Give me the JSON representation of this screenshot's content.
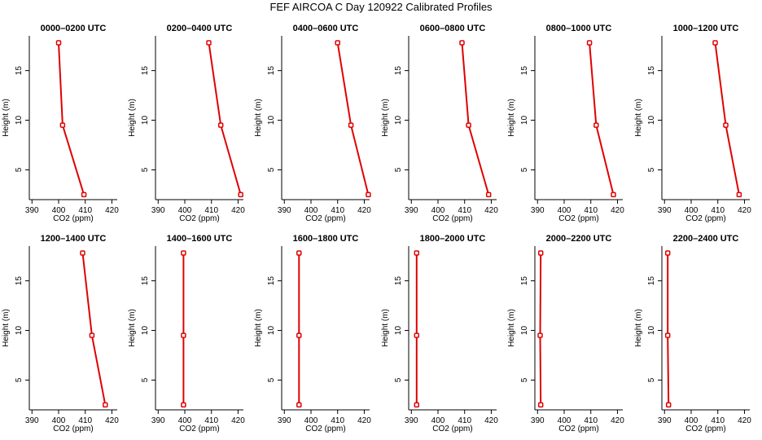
{
  "figure": {
    "title": "FEF AIRCOA C  Day 120922  Calibrated Profiles"
  },
  "colors": {
    "line": "#e00000",
    "background": "#ffffff",
    "axes": "#000000"
  },
  "chart_data": [
    {
      "type": "line",
      "title": "0000–0200 UTC",
      "xlabel": "CO2 (ppm)",
      "ylabel": "Height (m)",
      "xlim": [
        389,
        422
      ],
      "ylim": [
        2,
        18.5
      ],
      "x_ticks": [
        390,
        400,
        410,
        420
      ],
      "y_ticks": [
        5,
        10,
        15
      ],
      "series": [
        {
          "x": [
            409.5,
            401.5,
            400.0
          ],
          "y": [
            2.5,
            9.5,
            17.8
          ]
        }
      ]
    },
    {
      "type": "line",
      "title": "0200–0400 UTC",
      "xlabel": "CO2 (ppm)",
      "ylabel": "Height (m)",
      "xlim": [
        389,
        422
      ],
      "ylim": [
        2,
        18.5
      ],
      "x_ticks": [
        390,
        400,
        410,
        420
      ],
      "y_ticks": [
        5,
        10,
        15
      ],
      "series": [
        {
          "x": [
            421.0,
            413.5,
            409.0
          ],
          "y": [
            2.5,
            9.5,
            17.8
          ]
        }
      ]
    },
    {
      "type": "line",
      "title": "0400–0600 UTC",
      "xlabel": "CO2 (ppm)",
      "ylabel": "Height (m)",
      "xlim": [
        389,
        422
      ],
      "ylim": [
        2,
        18.5
      ],
      "x_ticks": [
        390,
        400,
        410,
        420
      ],
      "y_ticks": [
        5,
        10,
        15
      ],
      "series": [
        {
          "x": [
            421.5,
            415.0,
            410.0
          ],
          "y": [
            2.5,
            9.5,
            17.8
          ]
        }
      ]
    },
    {
      "type": "line",
      "title": "0600–0800 UTC",
      "xlabel": "CO2 (ppm)",
      "ylabel": "Height (m)",
      "xlim": [
        389,
        422
      ],
      "ylim": [
        2,
        18.5
      ],
      "x_ticks": [
        390,
        400,
        410,
        420
      ],
      "y_ticks": [
        5,
        10,
        15
      ],
      "series": [
        {
          "x": [
            419.0,
            411.5,
            409.0
          ],
          "y": [
            2.5,
            9.5,
            17.8
          ]
        }
      ]
    },
    {
      "type": "line",
      "title": "0800–1000 UTC",
      "xlabel": "CO2 (ppm)",
      "ylabel": "Height (m)",
      "xlim": [
        389,
        422
      ],
      "ylim": [
        2,
        18.5
      ],
      "x_ticks": [
        390,
        400,
        410,
        420
      ],
      "y_ticks": [
        5,
        10,
        15
      ],
      "series": [
        {
          "x": [
            418.5,
            412.0,
            409.5
          ],
          "y": [
            2.5,
            9.5,
            17.8
          ]
        }
      ]
    },
    {
      "type": "line",
      "title": "1000–1200 UTC",
      "xlabel": "CO2 (ppm)",
      "ylabel": "Height (m)",
      "xlim": [
        389,
        422
      ],
      "ylim": [
        2,
        18.5
      ],
      "x_ticks": [
        390,
        400,
        410,
        420
      ],
      "y_ticks": [
        5,
        10,
        15
      ],
      "series": [
        {
          "x": [
            418.0,
            413.0,
            409.0
          ],
          "y": [
            2.5,
            9.5,
            17.8
          ]
        }
      ]
    },
    {
      "type": "line",
      "title": "1200–1400 UTC",
      "xlabel": "CO2 (ppm)",
      "ylabel": "Height (m)",
      "xlim": [
        389,
        422
      ],
      "ylim": [
        2,
        18.5
      ],
      "x_ticks": [
        390,
        400,
        410,
        420
      ],
      "y_ticks": [
        5,
        10,
        15
      ],
      "series": [
        {
          "x": [
            417.5,
            412.5,
            409.0
          ],
          "y": [
            2.5,
            9.5,
            17.8
          ]
        }
      ]
    },
    {
      "type": "line",
      "title": "1400–1600 UTC",
      "xlabel": "CO2 (ppm)",
      "ylabel": "Height (m)",
      "xlim": [
        389,
        422
      ],
      "ylim": [
        2,
        18.5
      ],
      "x_ticks": [
        390,
        400,
        410,
        420
      ],
      "y_ticks": [
        5,
        10,
        15
      ],
      "series": [
        {
          "x": [
            399.5,
            399.5,
            399.5
          ],
          "y": [
            2.5,
            9.5,
            17.8
          ]
        }
      ]
    },
    {
      "type": "line",
      "title": "1600–1800 UTC",
      "xlabel": "CO2 (ppm)",
      "ylabel": "Height (m)",
      "xlim": [
        389,
        422
      ],
      "ylim": [
        2,
        18.5
      ],
      "x_ticks": [
        390,
        400,
        410,
        420
      ],
      "y_ticks": [
        5,
        10,
        15
      ],
      "series": [
        {
          "x": [
            395.5,
            395.5,
            395.5
          ],
          "y": [
            2.5,
            9.5,
            17.8
          ]
        }
      ]
    },
    {
      "type": "line",
      "title": "1800–2000 UTC",
      "xlabel": "CO2 (ppm)",
      "ylabel": "Height (m)",
      "xlim": [
        389,
        422
      ],
      "ylim": [
        2,
        18.5
      ],
      "x_ticks": [
        390,
        400,
        410,
        420
      ],
      "y_ticks": [
        5,
        10,
        15
      ],
      "series": [
        {
          "x": [
            392.0,
            392.0,
            392.0
          ],
          "y": [
            2.5,
            9.5,
            17.8
          ]
        }
      ]
    },
    {
      "type": "line",
      "title": "2000–2200 UTC",
      "xlabel": "CO2 (ppm)",
      "ylabel": "Height (m)",
      "xlim": [
        389,
        422
      ],
      "ylim": [
        2,
        18.5
      ],
      "x_ticks": [
        390,
        400,
        410,
        420
      ],
      "y_ticks": [
        5,
        10,
        15
      ],
      "series": [
        {
          "x": [
            391.2,
            391.0,
            391.2
          ],
          "y": [
            2.5,
            9.5,
            17.8
          ]
        }
      ]
    },
    {
      "type": "line",
      "title": "2200–2400 UTC",
      "xlabel": "CO2 (ppm)",
      "ylabel": "Height (m)",
      "xlim": [
        389,
        422
      ],
      "ylim": [
        2,
        18.5
      ],
      "x_ticks": [
        390,
        400,
        410,
        420
      ],
      "y_ticks": [
        5,
        10,
        15
      ],
      "series": [
        {
          "x": [
            391.5,
            391.2,
            391.2
          ],
          "y": [
            2.5,
            9.5,
            17.8
          ]
        }
      ]
    }
  ]
}
